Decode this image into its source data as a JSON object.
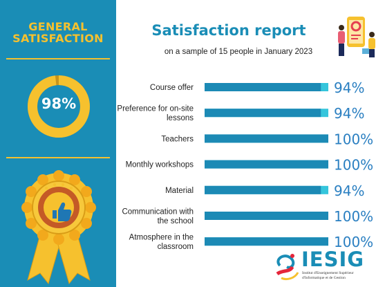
{
  "left_panel": {
    "title_line1": "GENERAL",
    "title_line2": "SATISFACTION",
    "overall_value": "98%",
    "overall_fraction": 0.98
  },
  "header": {
    "title": "Satisfaction report",
    "subtitle": "on a sample of 15 people in January 2023"
  },
  "logo": {
    "name": "IESIG",
    "subtitle_line1": "Institut d'Enseignement Supérieur",
    "subtitle_line2": "d'Informatique et de Gestion"
  },
  "colors": {
    "panel_blue": "#1a8db6",
    "bar_blue": "#1c8ab5",
    "bar_remainder": "#35c5dc",
    "gold": "#f6c12e",
    "value_text": "#2a7fc1"
  },
  "chart_data": {
    "type": "bar",
    "orientation": "horizontal",
    "categories": [
      [
        "Course offer"
      ],
      [
        "Preference for on-site",
        "lessons"
      ],
      [
        "Teachers"
      ],
      [
        "Monthly workshops"
      ],
      [
        "Material"
      ],
      [
        "Communication with",
        "the school"
      ],
      [
        "Atmosphere in the",
        "classroom"
      ]
    ],
    "values": [
      94,
      94,
      100,
      100,
      94,
      100,
      100
    ],
    "value_labels": [
      "94%",
      "94%",
      "100%",
      "100%",
      "94%",
      "100%",
      "100%"
    ],
    "xlim": [
      0,
      100
    ],
    "grid": false
  }
}
